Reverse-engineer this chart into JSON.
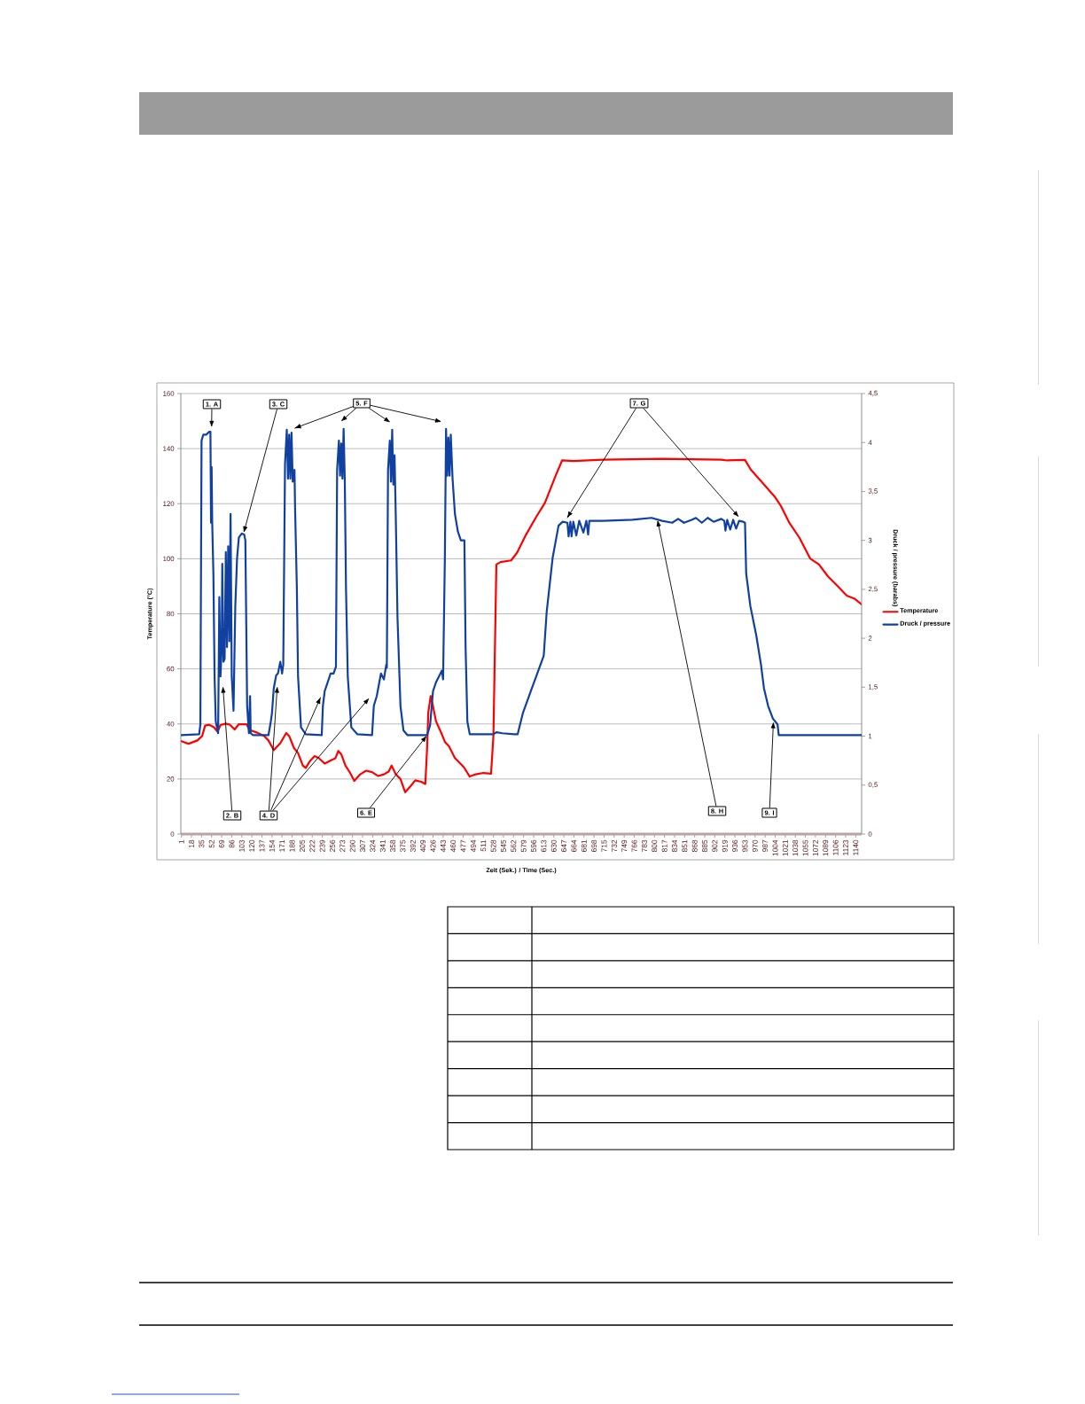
{
  "chart_data": {
    "type": "line",
    "xlabel": "Zeit (Sek.) / Time (Sec.)",
    "ylabel": "Temperature (°C)",
    "y2label": "Druck / pressure (barabs)",
    "xlim": [
      0,
      1150
    ],
    "xticks": [
      1,
      18,
      35,
      52,
      69,
      86,
      103,
      120,
      137,
      154,
      171,
      188,
      205,
      222,
      239,
      256,
      273,
      290,
      307,
      324,
      341,
      358,
      375,
      392,
      409,
      426,
      443,
      460,
      477,
      494,
      511,
      528,
      545,
      562,
      579,
      596,
      613,
      630,
      647,
      664,
      681,
      698,
      715,
      732,
      749,
      766,
      783,
      800,
      817,
      834,
      851,
      868,
      885,
      902,
      919,
      936,
      953,
      970,
      987,
      1004,
      1021,
      1038,
      1055,
      1072,
      1089,
      1106,
      1123,
      1140
    ],
    "ylim": [
      0,
      160
    ],
    "yticks": [
      0,
      20,
      40,
      60,
      80,
      100,
      120,
      140,
      160
    ],
    "y2lim": [
      0,
      4.5
    ],
    "y2ticks": [
      0,
      {
        "value": 0.5,
        "label": "0,5"
      },
      1,
      {
        "value": 1.5,
        "label": "1,5"
      },
      2,
      {
        "value": 2.5,
        "label": "2,5"
      },
      3,
      {
        "value": 3.5,
        "label": "3,5"
      },
      4,
      {
        "value": 4.5,
        "label": "4,5"
      }
    ],
    "grid": "y",
    "legend": "right",
    "series": [
      {
        "name": "Temperature",
        "color": "#ff0000",
        "x": [
          1,
          13,
          28,
          36,
          41,
          48,
          56,
          62,
          67,
          76,
          83,
          91,
          98,
          111,
          116,
          128,
          141,
          148,
          157,
          168,
          178,
          183,
          191,
          198,
          206,
          211,
          218,
          226,
          233,
          243,
          253,
          261,
          266,
          271,
          278,
          286,
          293,
          303,
          313,
          323,
          333,
          343,
          351,
          356,
          363,
          371,
          379,
          388,
          396,
          406,
          413,
          416,
          418,
          422,
          426,
          431,
          441,
          446,
          453,
          463,
          478,
          488,
          498,
          511,
          524,
          528,
          533,
          540,
          558,
          568,
          583,
          600,
          615,
          633,
          644,
          663,
          713,
          813,
          913,
          923,
          953,
          963,
          983,
          1003,
          1013,
          1028,
          1045,
          1063,
          1078,
          1093,
          1108,
          1125,
          1138,
          1150
        ],
        "values": [
          33.7,
          32.8,
          34.0,
          35.6,
          39.4,
          39.7,
          38.8,
          37.2,
          39.6,
          40.1,
          39.7,
          38.0,
          39.9,
          39.9,
          37.8,
          36.9,
          35.6,
          34.0,
          30.5,
          33.0,
          36.7,
          35.6,
          31.3,
          29.4,
          24.9,
          24.0,
          26.5,
          28.3,
          27.6,
          25.6,
          26.7,
          27.5,
          30.2,
          29.0,
          24.9,
          22.2,
          19.3,
          21.7,
          23.0,
          22.5,
          21.1,
          21.7,
          22.7,
          24.9,
          21.7,
          20.0,
          15.2,
          17.4,
          19.5,
          19.0,
          18.2,
          31.3,
          44.2,
          50.1,
          46.4,
          41.0,
          36.2,
          33.5,
          31.9,
          27.6,
          24.3,
          20.9,
          21.7,
          22.2,
          21.9,
          35.6,
          97.9,
          98.8,
          99.4,
          102.2,
          108.7,
          115.1,
          120.3,
          130.1,
          135.7,
          135.5,
          136.0,
          136.3,
          136.0,
          135.7,
          135.9,
          132.3,
          127.5,
          122.6,
          119.4,
          113.0,
          107.6,
          100.1,
          97.9,
          93.6,
          90.4,
          86.6,
          85.5,
          83.4
        ]
      },
      {
        "name": "Druck / pressure",
        "color": "#1040a0",
        "axis": "y2",
        "x": [
          1,
          31,
          33,
          35,
          38,
          43,
          48,
          50,
          51,
          52,
          53,
          55,
          57,
          59,
          63,
          65,
          67,
          69,
          70,
          72,
          74,
          76,
          78,
          80,
          82,
          84,
          86,
          89,
          92,
          95,
          98,
          103,
          107,
          109,
          112,
          115,
          117,
          118,
          122,
          148,
          152,
          154,
          157,
          161,
          164,
          168,
          171,
          173,
          176,
          179,
          181,
          183,
          185,
          187,
          189,
          192,
          193,
          196,
          198,
          203,
          211,
          238,
          240,
          243,
          248,
          253,
          258,
          262,
          264,
          267,
          269,
          271,
          273,
          275,
          277,
          279,
          282,
          288,
          298,
          323,
          326,
          331,
          338,
          343,
          347,
          348,
          350,
          353,
          355,
          357,
          359,
          361,
          363,
          366,
          371,
          376,
          383,
          416,
          421,
          426,
          431,
          436,
          441,
          443,
          446,
          448,
          450,
          452,
          454,
          456,
          459,
          463,
          468,
          473,
          479,
          481,
          484,
          488,
          528,
          533,
          543,
          563,
          569,
          578,
          593,
          613,
          618,
          628,
          638,
          645,
          653,
          655,
          658,
          660,
          663,
          668,
          673,
          680,
          685,
          688,
          690,
          713,
          763,
          795,
          813,
          830,
          840,
          850,
          863,
          870,
          880,
          890,
          900,
          913,
          918,
          920,
          923,
          928,
          933,
          938,
          943,
          950,
          953,
          955,
          962,
          972,
          980,
          985,
          992,
          1000,
          1008,
          1010,
          1150
        ],
        "values": [
          1.01,
          1.02,
          1.12,
          4.02,
          4.08,
          4.08,
          4.11,
          4.11,
          3.18,
          3.75,
          3.18,
          2.66,
          1.61,
          1.15,
          1.03,
          2.42,
          1.61,
          1.91,
          2.76,
          1.76,
          1.79,
          2.88,
          1.91,
          2.94,
          1.97,
          3.27,
          1.61,
          1.26,
          2.33,
          2.82,
          3.03,
          3.07,
          3.06,
          3.0,
          1.31,
          1.03,
          1.41,
          1.03,
          1.01,
          1.01,
          1.15,
          1.24,
          1.49,
          1.62,
          1.64,
          1.76,
          1.64,
          1.73,
          3.78,
          4.13,
          3.63,
          4.08,
          3.63,
          4.1,
          3.6,
          3.72,
          3.33,
          2.51,
          1.61,
          1.09,
          1.02,
          1.01,
          1.31,
          1.46,
          1.55,
          1.64,
          1.64,
          1.71,
          3.72,
          4.02,
          3.66,
          3.99,
          3.63,
          4.14,
          3.6,
          2.51,
          1.61,
          1.09,
          1.02,
          1.01,
          1.31,
          1.41,
          1.64,
          1.58,
          1.73,
          1.7,
          3.72,
          4.02,
          3.6,
          4.13,
          3.57,
          3.87,
          3.27,
          2.21,
          1.31,
          1.06,
          1.01,
          1.01,
          1.11,
          1.46,
          1.55,
          1.61,
          1.67,
          1.58,
          2.82,
          4.14,
          3.66,
          4.05,
          3.66,
          4.08,
          3.63,
          3.27,
          3.09,
          3.0,
          3.0,
          1.91,
          1.15,
          1.02,
          1.02,
          1.04,
          1.03,
          1.02,
          1.02,
          1.24,
          1.49,
          1.82,
          2.27,
          2.82,
          3.15,
          3.19,
          3.18,
          3.04,
          3.19,
          3.04,
          3.19,
          3.05,
          3.2,
          3.08,
          3.2,
          3.06,
          3.2,
          3.2,
          3.21,
          3.23,
          3.2,
          3.18,
          3.22,
          3.18,
          3.21,
          3.23,
          3.18,
          3.23,
          3.19,
          3.22,
          3.2,
          3.1,
          3.21,
          3.11,
          3.21,
          3.12,
          3.2,
          3.19,
          3.18,
          2.66,
          2.33,
          2.03,
          1.73,
          1.49,
          1.31,
          1.18,
          1.12,
          1.01,
          1.01
        ]
      }
    ],
    "annotations": [
      {
        "text": "1. A",
        "x": 52,
        "y": 147.5
      },
      {
        "text": "2. B",
        "x": 71,
        "y": 53.9
      },
      {
        "text": "3. C",
        "x": 106,
        "y": 109.2
      },
      {
        "text": "4. D",
        "x": 163,
        "y": 53.9
      },
      {
        "text": "5. F",
        "x": 191,
        "y": 147.3
      },
      {
        "text": "6. E",
        "x": 416,
        "y": 35.9
      },
      {
        "text": "7. G",
        "x": 652,
        "y": 114.6
      },
      {
        "text": "8. H",
        "x": 805,
        "y": 114.3
      },
      {
        "text": "9. I",
        "x": 1001,
        "y": 41.0
      }
    ]
  }
}
